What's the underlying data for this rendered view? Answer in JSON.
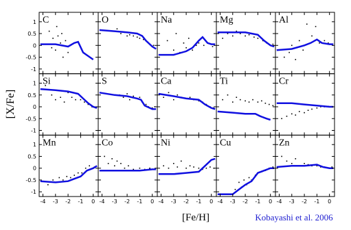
{
  "ylabel": "[X/Fe]",
  "xlabel": "[Fe/H]",
  "credit": "Kobayashi et al. 2006",
  "chart_data": [
    {
      "type": "line",
      "title": "C",
      "xlim": [
        -4.3,
        0.4
      ],
      "ylim": [
        -1.2,
        1.4
      ],
      "xticks": [
        -4,
        -3,
        -2,
        -1,
        0
      ],
      "yticks": [
        1,
        0.5,
        0,
        -0.5,
        -1
      ],
      "line": {
        "color": "#1010e0",
        "x": [
          -4.2,
          -3,
          -2,
          -1.5,
          -1.2,
          -0.8,
          0
        ],
        "values": [
          0.05,
          0.05,
          -0.05,
          0.1,
          0.15,
          -0.3,
          -0.6
        ]
      },
      "points": {
        "x": [
          -3.5,
          -3.2,
          -3.0,
          -2.8,
          -2.6,
          -2.4,
          -2.2,
          -2.0,
          -1.8,
          -3.3,
          -2.9,
          -2.5
        ],
        "values": [
          0.6,
          0.3,
          -0.2,
          0.4,
          0.1,
          -0.5,
          0.2,
          -0.3,
          0.0,
          -0.1,
          0.8,
          0.5
        ]
      }
    },
    {
      "type": "line",
      "title": "O",
      "xlim": [
        -4.3,
        0.4
      ],
      "ylim": [
        -1.2,
        1.4
      ],
      "xticks": [
        -4,
        -3,
        -2,
        -1,
        0
      ],
      "yticks": [
        1,
        0.5,
        0,
        -0.5,
        -1
      ],
      "line": {
        "color": "#1010e0",
        "x": [
          -4.2,
          -3,
          -2,
          -1.2,
          -0.8,
          -0.5,
          0,
          0.3
        ],
        "values": [
          0.65,
          0.6,
          0.55,
          0.5,
          0.4,
          0.2,
          -0.05,
          -0.15
        ]
      },
      "points": {
        "x": [
          -3.2,
          -2.8,
          -2.5,
          -2.2,
          -2.0,
          -1.8,
          -1.5,
          -1.2,
          -1.0,
          -0.7,
          -0.4,
          -0.2,
          0.1
        ],
        "values": [
          0.6,
          0.7,
          0.5,
          0.55,
          0.4,
          0.45,
          0.4,
          0.35,
          0.3,
          0.25,
          0.15,
          0.05,
          0.0
        ]
      }
    },
    {
      "type": "line",
      "title": "Na",
      "xlim": [
        -4.3,
        0.4
      ],
      "ylim": [
        -1.2,
        1.4
      ],
      "xticks": [
        -4,
        -3,
        -2,
        -1,
        0
      ],
      "yticks": [
        1,
        0.5,
        0,
        -0.5,
        -1
      ],
      "line": {
        "color": "#1010e0",
        "x": [
          -4.2,
          -3,
          -2,
          -1.5,
          -1,
          -0.7,
          -0.3,
          0,
          0.3
        ],
        "values": [
          -0.4,
          -0.4,
          -0.25,
          -0.1,
          0.2,
          0.35,
          0.1,
          0.05,
          0.05
        ]
      },
      "points": {
        "x": [
          -3.5,
          -3.0,
          -2.8,
          -2.5,
          -2.2,
          -2.0,
          -1.8,
          -1.5,
          -1.2,
          -1.0,
          -0.6,
          -0.3,
          0.1
        ],
        "values": [
          0.2,
          -0.2,
          0.5,
          -0.3,
          0.1,
          -0.1,
          0.3,
          -0.2,
          0.0,
          0.1,
          0.0,
          0.1,
          -0.05
        ]
      }
    },
    {
      "type": "line",
      "title": "Mg",
      "xlim": [
        -4.3,
        0.4
      ],
      "ylim": [
        -1.2,
        1.4
      ],
      "xticks": [
        -4,
        -3,
        -2,
        -1,
        0
      ],
      "yticks": [
        1,
        0.5,
        0,
        -0.5,
        -1
      ],
      "line": {
        "color": "#1010e0",
        "x": [
          -4.2,
          -3,
          -2,
          -1.5,
          -1,
          -0.5,
          0,
          0.3
        ],
        "values": [
          0.55,
          0.55,
          0.55,
          0.5,
          0.45,
          0.2,
          0.0,
          -0.05
        ]
      },
      "points": {
        "x": [
          -3.8,
          -3.4,
          -3.0,
          -2.7,
          -2.4,
          -2.0,
          -1.7,
          -1.3,
          -1.0,
          -0.6,
          -0.3,
          0.0,
          0.2
        ],
        "values": [
          0.3,
          0.5,
          0.4,
          0.6,
          0.5,
          0.4,
          0.45,
          0.35,
          0.3,
          0.2,
          0.1,
          0.0,
          0.05
        ]
      }
    },
    {
      "type": "line",
      "title": "Al",
      "xlim": [
        -4.3,
        0.4
      ],
      "ylim": [
        -1.2,
        1.4
      ],
      "xticks": [
        -4,
        -3,
        -2,
        -1,
        0
      ],
      "yticks": [
        1,
        0.5,
        0,
        -0.5,
        -1
      ],
      "line": {
        "color": "#1010e0",
        "x": [
          -4.2,
          -3,
          -2,
          -1.5,
          -1,
          -0.6,
          0,
          0.3
        ],
        "values": [
          -0.2,
          -0.15,
          0.0,
          0.1,
          0.25,
          0.1,
          0.05,
          0.05
        ]
      },
      "points": {
        "x": [
          -3.6,
          -3.2,
          -3.0,
          -2.7,
          -2.4,
          -2.1,
          -1.8,
          -1.4,
          -1.1,
          -0.8,
          -0.4,
          -0.1,
          0.2
        ],
        "values": [
          -0.5,
          -0.3,
          0.0,
          -0.6,
          0.2,
          -0.2,
          0.9,
          0.4,
          0.8,
          0.1,
          0.2,
          0.1,
          0.05
        ]
      }
    },
    {
      "type": "line",
      "title": "Si",
      "xlim": [
        -4.3,
        0.4
      ],
      "ylim": [
        -1.2,
        1.4
      ],
      "xticks": [
        -4,
        -3,
        -2,
        -1,
        0
      ],
      "yticks": [
        1,
        0.5,
        0,
        -0.5,
        -1
      ],
      "line": {
        "color": "#1010e0",
        "x": [
          -4.2,
          -3,
          -2,
          -1.2,
          -0.8,
          -0.4,
          0,
          0.3
        ],
        "values": [
          0.75,
          0.7,
          0.65,
          0.55,
          0.35,
          0.15,
          0.0,
          -0.05
        ]
      },
      "points": {
        "x": [
          -3.8,
          -3.3,
          -3.0,
          -2.6,
          -2.3,
          -2.0,
          -1.7,
          -1.4,
          -1.0,
          -0.7,
          -0.4,
          -0.1,
          0.2
        ],
        "values": [
          0.9,
          0.5,
          0.3,
          0.4,
          0.2,
          0.6,
          0.4,
          0.3,
          0.3,
          0.2,
          0.1,
          0.0,
          -0.05
        ]
      }
    },
    {
      "type": "line",
      "title": "S",
      "xlim": [
        -4.3,
        0.4
      ],
      "ylim": [
        -1.2,
        1.4
      ],
      "xticks": [
        -4,
        -3,
        -2,
        -1,
        0
      ],
      "yticks": [
        1,
        0.5,
        0,
        -0.5,
        -1
      ],
      "line": {
        "color": "#1010e0",
        "x": [
          -4.2,
          -3,
          -2,
          -1.2,
          -0.9,
          -0.6,
          0,
          0.3
        ],
        "values": [
          0.6,
          0.5,
          0.45,
          0.35,
          0.3,
          0.05,
          -0.1,
          -0.1
        ]
      },
      "points": {
        "x": [
          -2.6,
          -2.3,
          -2.0,
          -1.8,
          -1.5,
          -1.2,
          -1.0,
          -0.8,
          -0.5,
          -0.3,
          0.0,
          0.2
        ],
        "values": [
          0.5,
          0.4,
          0.55,
          0.3,
          0.45,
          0.35,
          0.4,
          0.2,
          0.1,
          0.0,
          -0.05,
          0.0
        ]
      }
    },
    {
      "type": "line",
      "title": "Ca",
      "xlim": [
        -4.3,
        0.4
      ],
      "ylim": [
        -1.2,
        1.4
      ],
      "xticks": [
        -4,
        -3,
        -2,
        -1,
        0
      ],
      "yticks": [
        1,
        0.5,
        0,
        -0.5,
        -1
      ],
      "line": {
        "color": "#1010e0",
        "x": [
          -4.2,
          -3,
          -2,
          -1,
          -0.5,
          0,
          0.3
        ],
        "values": [
          0.55,
          0.45,
          0.35,
          0.3,
          0.1,
          -0.05,
          -0.1
        ]
      },
      "points": {
        "x": [
          -3.8,
          -3.4,
          -3.0,
          -2.7,
          -2.4,
          -2.0,
          -1.7,
          -1.4,
          -1.0,
          -0.7,
          -0.4,
          -0.1,
          0.2
        ],
        "values": [
          0.4,
          0.6,
          0.3,
          0.5,
          0.4,
          0.35,
          0.4,
          0.3,
          0.25,
          0.2,
          0.1,
          0.0,
          -0.05
        ]
      }
    },
    {
      "type": "line",
      "title": "Ti",
      "xlim": [
        -4.3,
        0.4
      ],
      "ylim": [
        -1.2,
        1.4
      ],
      "xticks": [
        -4,
        -3,
        -2,
        -1,
        0
      ],
      "yticks": [
        1,
        0.5,
        0,
        -0.5,
        -1
      ],
      "line": {
        "color": "#1010e0",
        "x": [
          -4.2,
          -3,
          -2,
          -1.2,
          -0.8,
          -0.3,
          0
        ],
        "values": [
          -0.2,
          -0.25,
          -0.3,
          -0.3,
          -0.4,
          -0.5,
          -0.55
        ]
      },
      "points": {
        "x": [
          -3.8,
          -3.4,
          -3.0,
          -2.7,
          -2.4,
          -2.0,
          -1.7,
          -1.4,
          -1.0,
          -0.7,
          -0.4,
          -0.1,
          0.2
        ],
        "values": [
          0.3,
          0.5,
          0.2,
          0.4,
          0.3,
          0.25,
          0.2,
          0.3,
          0.2,
          0.25,
          0.15,
          0.1,
          0.05
        ]
      }
    },
    {
      "type": "line",
      "title": "Cr",
      "xlim": [
        -4.3,
        0.4
      ],
      "ylim": [
        -1.2,
        1.4
      ],
      "xticks": [
        -4,
        -3,
        -2,
        -1,
        0
      ],
      "yticks": [
        1,
        0.5,
        0,
        -0.5,
        -1
      ],
      "line": {
        "color": "#1010e0",
        "x": [
          -4.2,
          -3,
          -2,
          -1,
          0,
          0.3
        ],
        "values": [
          0.15,
          0.15,
          0.1,
          0.05,
          0.0,
          0.0
        ]
      },
      "points": {
        "x": [
          -3.8,
          -3.4,
          -3.0,
          -2.7,
          -2.4,
          -2.0,
          -1.7,
          -1.4,
          -1.0,
          -0.7,
          -0.4,
          -0.1,
          0.2
        ],
        "values": [
          -0.5,
          -0.4,
          -0.3,
          -0.35,
          -0.2,
          -0.25,
          -0.15,
          -0.1,
          -0.05,
          0.0,
          0.0,
          0.02,
          0.0
        ]
      }
    },
    {
      "type": "line",
      "title": "Mn",
      "xlim": [
        -4.3,
        0.4
      ],
      "ylim": [
        -1.2,
        1.4
      ],
      "xticks": [
        -4,
        -3,
        -2,
        -1,
        0
      ],
      "yticks": [
        1,
        0.5,
        0,
        -0.5,
        -1
      ],
      "line": {
        "color": "#1010e0",
        "x": [
          -4.2,
          -3,
          -2,
          -1.5,
          -1,
          -0.5,
          0,
          0.3
        ],
        "values": [
          -0.55,
          -0.6,
          -0.55,
          -0.45,
          -0.35,
          -0.1,
          0.0,
          0.1
        ]
      },
      "points": {
        "x": [
          -3.6,
          -3.2,
          -3.0,
          -2.7,
          -2.4,
          -2.1,
          -1.8,
          -1.5,
          -1.2,
          -0.9,
          -0.6,
          -0.3,
          0.1
        ],
        "values": [
          -0.7,
          -0.5,
          -0.6,
          -0.4,
          -0.5,
          -0.35,
          -0.4,
          -0.3,
          -0.2,
          -0.2,
          0.0,
          0.1,
          0.05
        ]
      }
    },
    {
      "type": "line",
      "title": "Co",
      "xlim": [
        -4.3,
        0.4
      ],
      "ylim": [
        -1.2,
        1.4
      ],
      "xticks": [
        -4,
        -3,
        -2,
        -1,
        0
      ],
      "yticks": [
        1,
        0.5,
        0,
        -0.5,
        -1
      ],
      "line": {
        "color": "#1010e0",
        "x": [
          -4.2,
          -3,
          -2,
          -1,
          0,
          0.3
        ],
        "values": [
          -0.1,
          -0.1,
          -0.1,
          -0.1,
          -0.05,
          -0.05
        ]
      },
      "points": {
        "x": [
          -3.8,
          -3.5,
          -3.2,
          -3.0,
          -2.8,
          -2.5,
          -2.2,
          -1.9,
          -1.5,
          -1.0,
          -0.6,
          -0.2,
          0.1
        ],
        "values": [
          0.5,
          0.2,
          0.4,
          0.1,
          0.3,
          0.2,
          0.0,
          0.1,
          -0.05,
          0.0,
          -0.05,
          0.0,
          -0.05
        ]
      }
    },
    {
      "type": "line",
      "title": "Ni",
      "xlim": [
        -4.3,
        0.4
      ],
      "ylim": [
        -1.2,
        1.4
      ],
      "xticks": [
        -4,
        -3,
        -2,
        -1,
        0
      ],
      "yticks": [
        1,
        0.5,
        0,
        -0.5,
        -1
      ],
      "line": {
        "color": "#1010e0",
        "x": [
          -4.2,
          -3,
          -2,
          -1,
          -0.5,
          0,
          0.3
        ],
        "values": [
          -0.25,
          -0.25,
          -0.2,
          -0.15,
          0.1,
          0.35,
          0.4
        ]
      },
      "points": {
        "x": [
          -3.8,
          -3.4,
          -3.0,
          -2.7,
          -2.4,
          -2.0,
          -1.7,
          -1.4,
          -1.0,
          -0.7,
          -0.4,
          -0.1,
          0.2
        ],
        "values": [
          0.1,
          0.0,
          0.2,
          0.05,
          0.3,
          0.0,
          0.1,
          0.05,
          0.0,
          -0.05,
          0.0,
          0.05,
          0.0
        ]
      }
    },
    {
      "type": "line",
      "title": "Cu",
      "xlim": [
        -4.3,
        0.4
      ],
      "ylim": [
        -1.2,
        1.4
      ],
      "xticks": [
        -4,
        -3,
        -2,
        -1,
        0
      ],
      "yticks": [
        1,
        0.5,
        0,
        -0.5,
        -1
      ],
      "line": {
        "color": "#1010e0",
        "x": [
          -4.2,
          -3,
          -2.5,
          -2,
          -1.5,
          -1,
          -0.5,
          0,
          0.3
        ],
        "values": [
          -1.1,
          -1.1,
          -0.9,
          -0.7,
          -0.55,
          -0.2,
          -0.1,
          0.0,
          0.0
        ]
      },
      "points": {
        "x": [
          -2.8,
          -2.5,
          -2.3,
          -2.1,
          -1.9,
          -1.7,
          -1.5,
          -1.2,
          -1.0,
          -0.7,
          -0.4,
          -0.1,
          0.2
        ],
        "values": [
          -0.9,
          -0.6,
          -0.8,
          -0.5,
          -0.7,
          -0.4,
          -0.5,
          -0.3,
          -0.2,
          -0.15,
          -0.1,
          0.0,
          0.05
        ]
      }
    },
    {
      "type": "line",
      "title": "Zn",
      "xlim": [
        -4.3,
        0.4
      ],
      "ylim": [
        -1.2,
        1.4
      ],
      "xticks": [
        -4,
        -3,
        -2,
        -1,
        0
      ],
      "yticks": [
        1,
        0.5,
        0,
        -0.5,
        -1
      ],
      "line": {
        "color": "#1010e0",
        "x": [
          -4.2,
          -3,
          -2,
          -1,
          -0.5,
          0,
          0.3
        ],
        "values": [
          0.05,
          0.1,
          0.1,
          0.15,
          0.05,
          0.0,
          0.0
        ]
      },
      "points": {
        "x": [
          -3.8,
          -3.4,
          -3.0,
          -2.7,
          -2.4,
          -2.0,
          -1.7,
          -1.4,
          -1.0,
          -0.7,
          -0.4,
          -0.1,
          0.2
        ],
        "values": [
          0.5,
          0.3,
          0.2,
          0.4,
          0.1,
          0.2,
          0.15,
          0.1,
          0.1,
          0.05,
          0.05,
          0.0,
          0.05
        ]
      }
    }
  ]
}
